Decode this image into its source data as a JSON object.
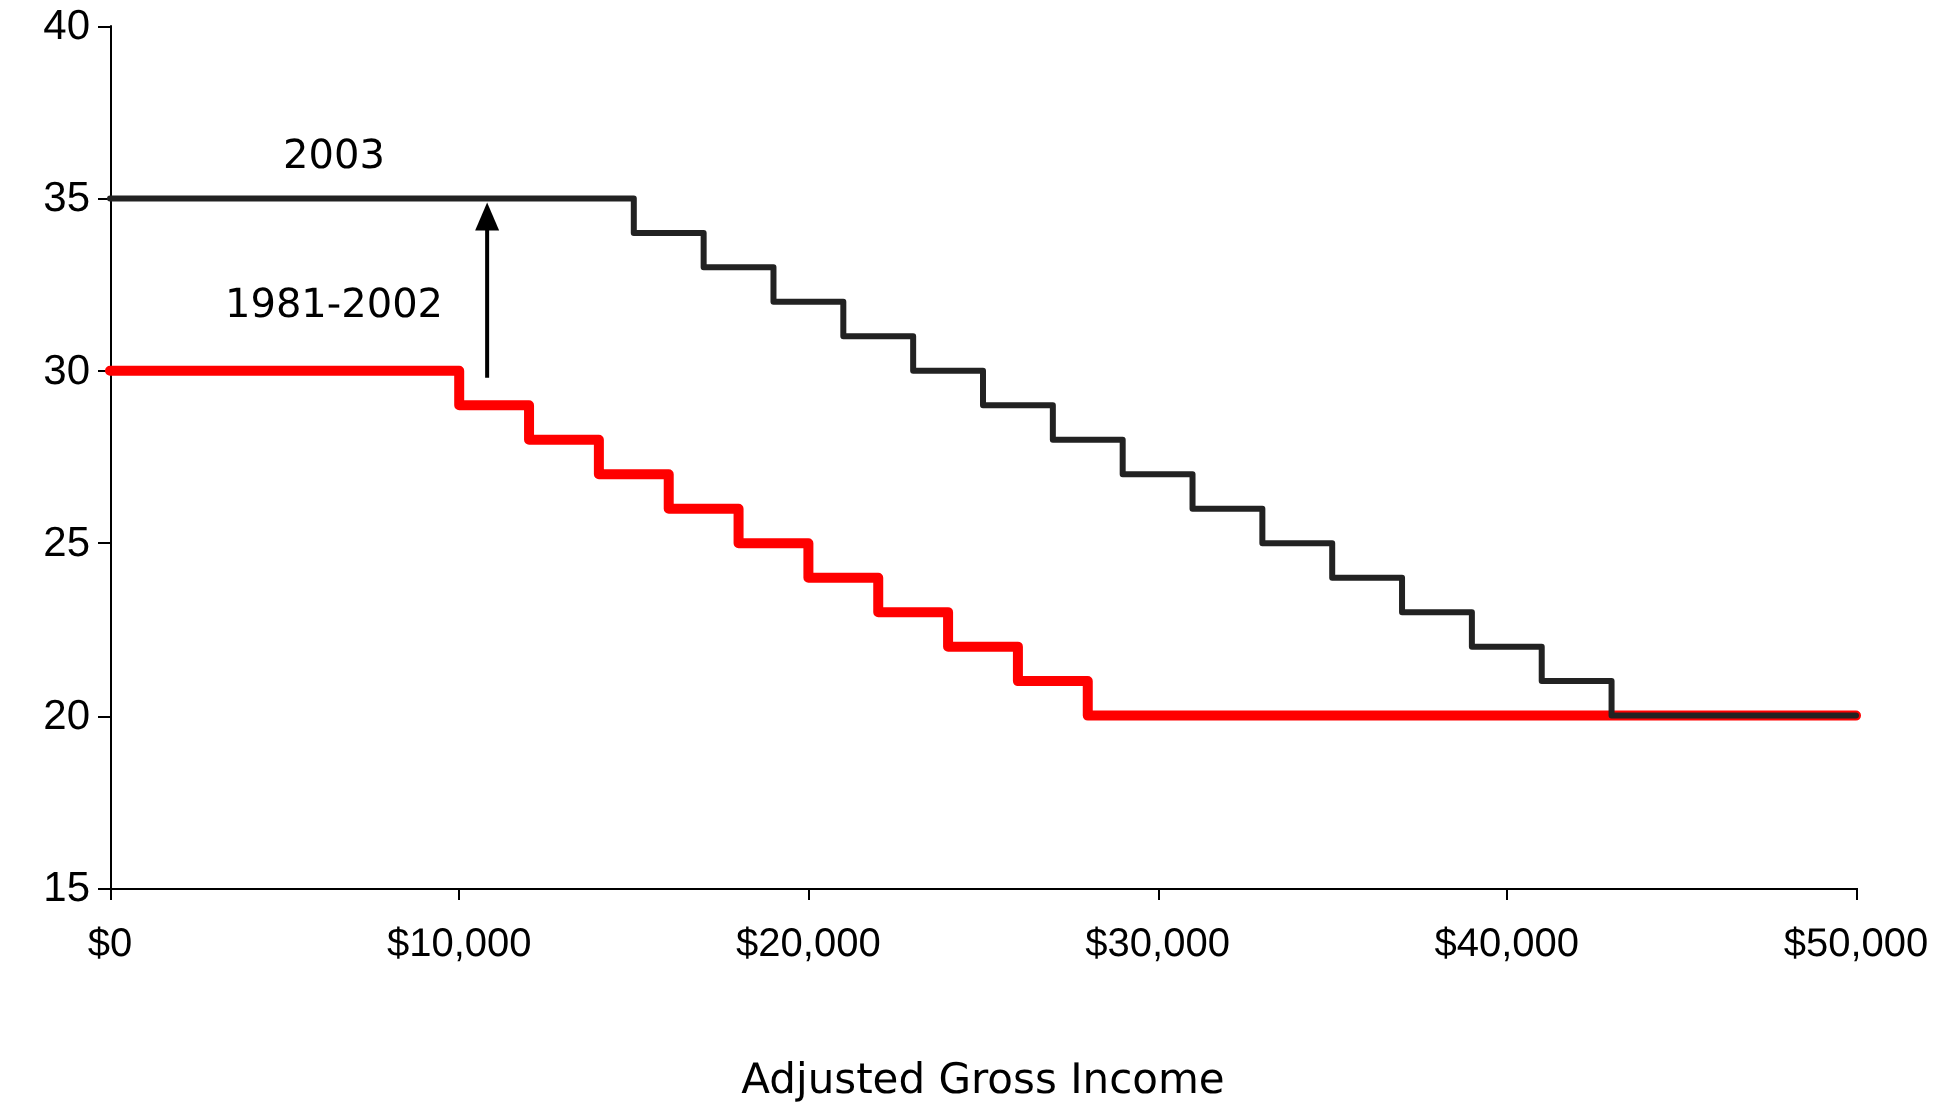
{
  "chart_data": {
    "type": "step",
    "xlabel": "Adjusted Gross Income",
    "series": [
      {
        "name": "2003",
        "color": "#222222",
        "x": [
          0,
          15000,
          17000,
          19000,
          21000,
          23000,
          25000,
          27000,
          29000,
          31000,
          33000,
          35000,
          37000,
          39000,
          41000,
          43000,
          50000
        ],
        "values": [
          35,
          34,
          33,
          32,
          31,
          30,
          29,
          28,
          27,
          26,
          25,
          24,
          23,
          22,
          21,
          20,
          20
        ]
      },
      {
        "name": "1981-2002",
        "color": "#ff0000",
        "x": [
          0,
          10000,
          12000,
          14000,
          16000,
          18000,
          20000,
          22000,
          24000,
          26000,
          28000,
          50000
        ],
        "values": [
          30,
          29,
          28,
          27,
          26,
          25,
          24,
          23,
          22,
          21,
          20,
          20
        ]
      }
    ],
    "xlim": [
      0,
      50000
    ],
    "xticks": [
      {
        "value": 0,
        "label": "$0"
      },
      {
        "value": 10000,
        "label": "$10,000"
      },
      {
        "value": 20000,
        "label": "$20,000"
      },
      {
        "value": 30000,
        "label": "$30,000"
      },
      {
        "value": 40000,
        "label": "$40,000"
      },
      {
        "value": 50000,
        "label": "$50,000"
      }
    ],
    "ylim": [
      15,
      40
    ],
    "yticks": [
      15,
      20,
      25,
      30,
      35,
      40
    ],
    "grid": false,
    "legend": false,
    "marker": "none",
    "line_style": "solid"
  }
}
